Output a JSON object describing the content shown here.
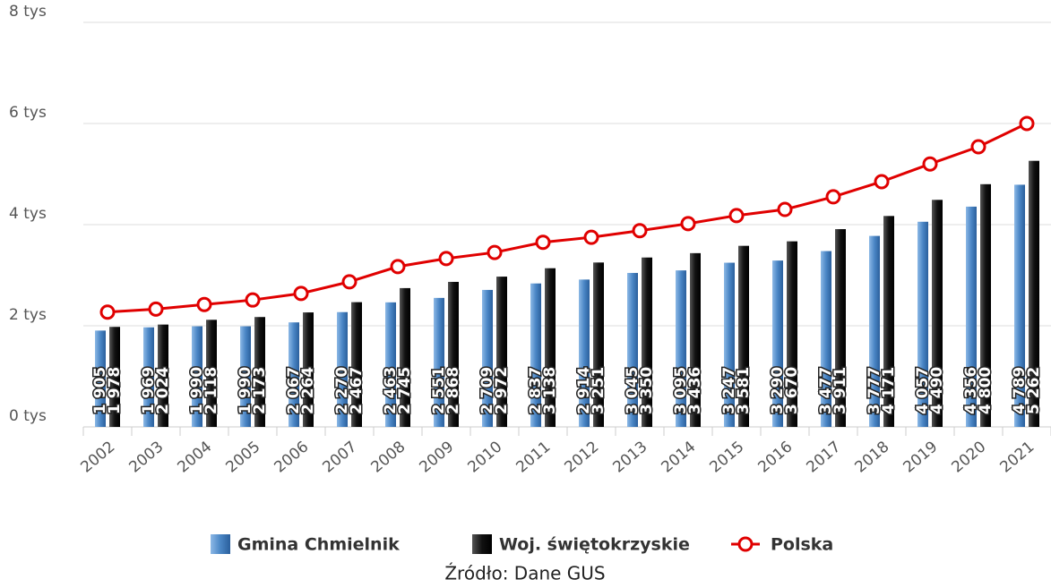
{
  "chart_data": {
    "type": "bar_line",
    "categories": [
      "2002",
      "2003",
      "2004",
      "2005",
      "2006",
      "2007",
      "2008",
      "2009",
      "2010",
      "2011",
      "2012",
      "2013",
      "2014",
      "2015",
      "2016",
      "2017",
      "2018",
      "2019",
      "2020",
      "2021"
    ],
    "series": [
      {
        "name": "Gmina Chmielnik",
        "color": "#4a86c5",
        "type": "bar",
        "values": [
          1905,
          1969,
          1990,
          1990,
          2067,
          2270,
          2463,
          2551,
          2709,
          2837,
          2914,
          3045,
          3095,
          3247,
          3290,
          3477,
          3777,
          4057,
          4356,
          4789
        ],
        "value_labels": [
          "1 905",
          "1 969",
          "1 990",
          "1 990",
          "2 067",
          "2 270",
          "2 463",
          "2 551",
          "2 709",
          "2 837",
          "2 914",
          "3 045",
          "3 095",
          "3 247",
          "3 290",
          "3 477",
          "3 777",
          "4 057",
          "4 356",
          "4 789"
        ]
      },
      {
        "name": "Woj. świętokrzyskie",
        "color": "#111111",
        "type": "bar",
        "values": [
          1978,
          2024,
          2118,
          2173,
          2264,
          2467,
          2745,
          2868,
          2972,
          3138,
          3251,
          3350,
          3436,
          3581,
          3670,
          3911,
          4171,
          4490,
          4800,
          5262
        ],
        "value_labels": [
          "1 978",
          "2 024",
          "2 118",
          "2 173",
          "2 264",
          "2 467",
          "2 745",
          "2 868",
          "2 972",
          "3 138",
          "3 251",
          "3 350",
          "3 436",
          "3 581",
          "3 670",
          "3 911",
          "4 171",
          "4 490",
          "4 800",
          "5 262"
        ]
      },
      {
        "name": "Polska",
        "color": "#e00000",
        "type": "line",
        "values": [
          2270,
          2330,
          2420,
          2510,
          2640,
          2870,
          3170,
          3330,
          3450,
          3650,
          3750,
          3880,
          4020,
          4180,
          4300,
          4550,
          4850,
          5200,
          5540,
          6000
        ]
      }
    ],
    "ylim": [
      0,
      8000
    ],
    "yticks": [
      {
        "value": 0,
        "label": "0 tys"
      },
      {
        "value": 2000,
        "label": "2 tys"
      },
      {
        "value": 4000,
        "label": "4 tys"
      },
      {
        "value": 6000,
        "label": "6 tys"
      },
      {
        "value": 8000,
        "label": "8 tys"
      }
    ],
    "grid": true,
    "legend": "bottom",
    "source": "Źródło: Dane GUS"
  }
}
